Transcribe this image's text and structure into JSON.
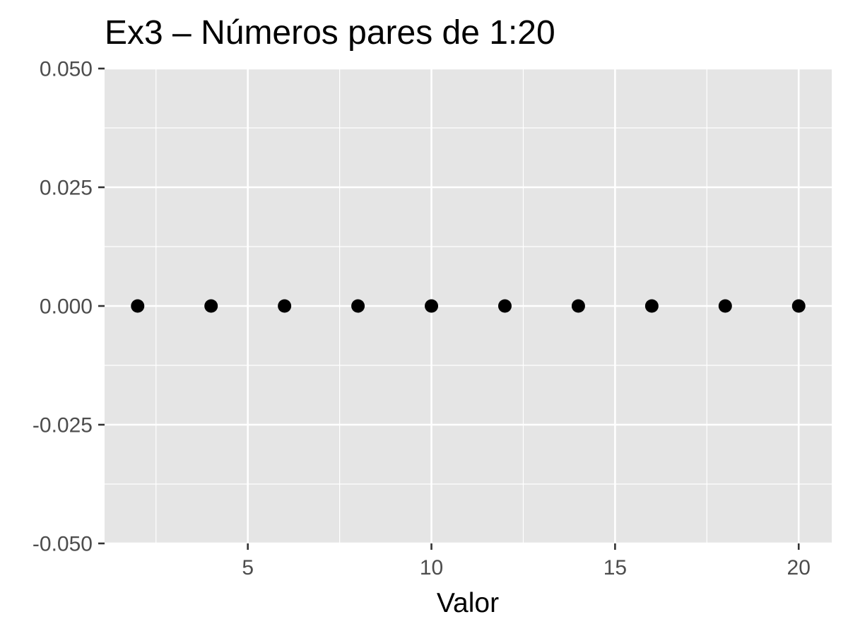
{
  "chart_data": {
    "type": "scatter",
    "title": "Ex3 – Números pares de 1:20",
    "xlabel": "Valor",
    "ylabel": "",
    "x": [
      2,
      4,
      6,
      8,
      10,
      12,
      14,
      16,
      18,
      20
    ],
    "y": [
      0,
      0,
      0,
      0,
      0,
      0,
      0,
      0,
      0,
      0
    ],
    "xlim": [
      1.1,
      20.9
    ],
    "ylim": [
      -0.05,
      0.05
    ],
    "x_ticks": [
      5,
      10,
      15,
      20
    ],
    "x_tick_labels": [
      "5",
      "10",
      "15",
      "20"
    ],
    "x_minor_ticks": [
      2.5,
      7.5,
      12.5,
      17.5
    ],
    "y_ticks": [
      -0.05,
      -0.025,
      0,
      0.025,
      0.05
    ],
    "y_tick_labels": [
      "-0.050",
      "-0.025",
      "0.000",
      "0.025",
      "0.050"
    ],
    "y_minor_ticks": [
      -0.0375,
      -0.0125,
      0.0125,
      0.0375
    ],
    "grid": true,
    "legend": "none",
    "colors": {
      "panel_background": "#e5e5e5",
      "grid": "#ffffff",
      "point": "#000000",
      "tick_text": "#4d4d4d",
      "axis_tick": "#333333"
    }
  }
}
